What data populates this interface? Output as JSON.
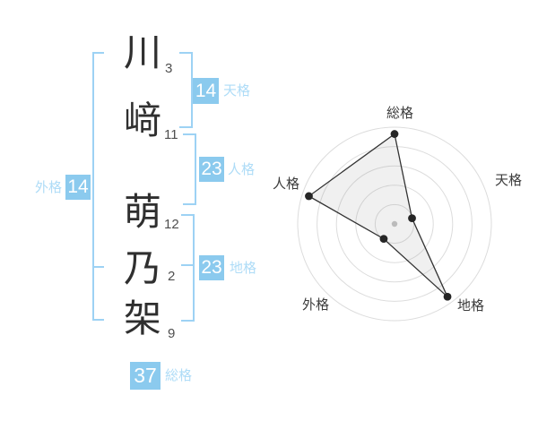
{
  "name": {
    "surname": [
      {
        "char": "川",
        "strokes": "3"
      },
      {
        "char": "﨑",
        "strokes": "11"
      }
    ],
    "given": [
      {
        "char": "萌",
        "strokes": "12"
      },
      {
        "char": "乃",
        "strokes": "2"
      },
      {
        "char": "架",
        "strokes": "9"
      }
    ]
  },
  "categories": {
    "tenkaku": {
      "label": "天格",
      "value": "14"
    },
    "jinkaku": {
      "label": "人格",
      "value": "23"
    },
    "chikaku": {
      "label": "地格",
      "value": "23"
    },
    "gaikaku": {
      "label": "外格",
      "value": "14"
    },
    "soukaku": {
      "label": "総格",
      "value": "37"
    }
  },
  "colors": {
    "badge_bg": "#8bcaee",
    "badge_text": "#ffffff",
    "category_label": "#aedcf7",
    "bracket": "#9dd2f4",
    "kanji": "#2f2f2f",
    "stroke_number": "#4f4f4f"
  },
  "chart_data": {
    "type": "radar",
    "axes": [
      "総格",
      "天格",
      "地格",
      "外格",
      "人格"
    ],
    "values_fraction": [
      0.93,
      0.19,
      0.93,
      0.19,
      0.93
    ],
    "linked_values": {
      "総格": 37,
      "天格": 14,
      "地格": 23,
      "外格": 14,
      "人格": 23
    },
    "rings": 5,
    "start_angle_deg": 0,
    "direction": "clockwise",
    "grid": true,
    "legend": false,
    "grid_color": "#dcdcdc",
    "line_color": "#333333",
    "fill_color": "rgba(140,140,140,0.13)",
    "point_color": "#262626",
    "center_dot_color": "#bbbbbb"
  }
}
